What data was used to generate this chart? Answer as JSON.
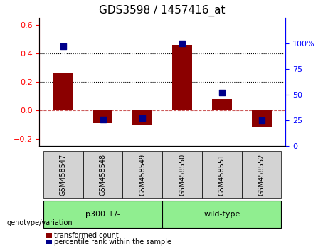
{
  "title": "GDS3598 / 1457416_at",
  "samples": [
    "GSM458547",
    "GSM458548",
    "GSM458549",
    "GSM458550",
    "GSM458551",
    "GSM458552"
  ],
  "bar_values": [
    0.26,
    -0.09,
    -0.1,
    0.46,
    0.08,
    -0.12
  ],
  "scatter_values": [
    97,
    26,
    27,
    100,
    52,
    25
  ],
  "bar_color": "#8B0000",
  "scatter_color": "#00008B",
  "ylim_left": [
    -0.25,
    0.65
  ],
  "ylim_right": [
    0,
    125
  ],
  "yticks_left": [
    -0.2,
    0.0,
    0.2,
    0.4,
    0.6
  ],
  "yticks_right": [
    0,
    25,
    50,
    75,
    100
  ],
  "ytick_labels_right": [
    "0",
    "25",
    "50",
    "75",
    "100%"
  ],
  "groups": [
    {
      "label": "p300 +/-",
      "samples": [
        "GSM458547",
        "GSM458548",
        "GSM458549"
      ],
      "color": "#90EE90"
    },
    {
      "label": "wild-type",
      "samples": [
        "GSM458550",
        "GSM458551",
        "GSM458552"
      ],
      "color": "#90EE90"
    }
  ],
  "group_row_label": "genotype/variation",
  "legend_bar_label": "transformed count",
  "legend_scatter_label": "percentile rank within the sample",
  "zero_line_color": "#CD5C5C",
  "grid_color": "#000000",
  "xticklabel_bg": "#D3D3D3"
}
